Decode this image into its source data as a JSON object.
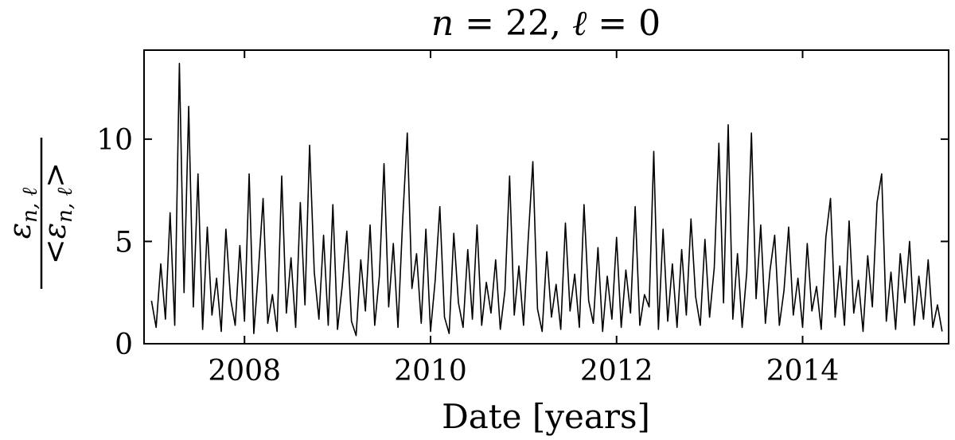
{
  "chart_data": {
    "type": "line",
    "title": {
      "n": "n",
      "eq1": " = 22, ",
      "l": "ℓ",
      "eq2": " = 0"
    },
    "xlabel": "Date [years]",
    "ylabel": {
      "numerator": {
        "symbol": "ε",
        "subscript": "n, ℓ"
      },
      "denominator": {
        "left": "<",
        "symbol": "ε",
        "subscript": "n, ℓ",
        "right": ">"
      }
    },
    "xlim": [
      2006.92,
      2015.57
    ],
    "ylim": [
      0,
      14.35
    ],
    "xticks": [
      2008,
      2010,
      2012,
      2014
    ],
    "yticks": [
      0,
      5,
      10
    ],
    "grid": false,
    "mirror_ticks": true,
    "x": [
      2007,
      2007.05,
      2007.1,
      2007.15,
      2007.2,
      2007.25,
      2007.3,
      2007.35,
      2007.4,
      2007.45,
      2007.5,
      2007.55,
      2007.6,
      2007.65,
      2007.7,
      2007.75,
      2007.8,
      2007.85,
      2007.9,
      2007.95,
      2008,
      2008.05,
      2008.1,
      2008.15,
      2008.2,
      2008.25,
      2008.3,
      2008.35,
      2008.4,
      2008.45,
      2008.5,
      2008.55,
      2008.6,
      2008.65,
      2008.7,
      2008.75,
      2008.8,
      2008.85,
      2008.9,
      2008.95,
      2009,
      2009.05,
      2009.1,
      2009.15,
      2009.2,
      2009.25,
      2009.3,
      2009.35,
      2009.4,
      2009.45,
      2009.5,
      2009.55,
      2009.6,
      2009.65,
      2009.7,
      2009.75,
      2009.8,
      2009.85,
      2009.9,
      2009.95,
      2010,
      2010.05,
      2010.1,
      2010.15,
      2010.2,
      2010.25,
      2010.3,
      2010.35,
      2010.4,
      2010.45,
      2010.5,
      2010.55,
      2010.6,
      2010.65,
      2010.7,
      2010.75,
      2010.8,
      2010.85,
      2010.9,
      2010.95,
      2011,
      2011.05,
      2011.1,
      2011.15,
      2011.2,
      2011.25,
      2011.3,
      2011.35,
      2011.4,
      2011.45,
      2011.5,
      2011.55,
      2011.6,
      2011.65,
      2011.7,
      2011.75,
      2011.8,
      2011.85,
      2011.9,
      2011.95,
      2012,
      2012.05,
      2012.1,
      2012.15,
      2012.2,
      2012.25,
      2012.3,
      2012.35,
      2012.4,
      2012.45,
      2012.5,
      2012.55,
      2012.6,
      2012.65,
      2012.7,
      2012.75,
      2012.8,
      2012.85,
      2012.9,
      2012.95,
      2013,
      2013.05,
      2013.1,
      2013.15,
      2013.2,
      2013.25,
      2013.3,
      2013.35,
      2013.4,
      2013.45,
      2013.5,
      2013.55,
      2013.6,
      2013.65,
      2013.7,
      2013.75,
      2013.8,
      2013.85,
      2013.9,
      2013.95,
      2014,
      2014.05,
      2014.1,
      2014.15,
      2014.2,
      2014.25,
      2014.3,
      2014.35,
      2014.4,
      2014.45,
      2014.5,
      2014.55,
      2014.6,
      2014.65,
      2014.7,
      2014.75,
      2014.8,
      2014.85,
      2014.9,
      2014.95,
      2015,
      2015.05,
      2015.1,
      2015.15,
      2015.2,
      2015.25,
      2015.3,
      2015.35,
      2015.4,
      2015.45,
      2015.5
    ],
    "series": [
      {
        "color": "#000000",
        "values": [
          2.1,
          0.8,
          3.9,
          1.2,
          6.4,
          0.9,
          13.7,
          2.5,
          11.6,
          1.8,
          8.3,
          0.7,
          5.7,
          1.4,
          3.2,
          0.6,
          5.6,
          2.2,
          0.9,
          4.8,
          1.1,
          8.3,
          0.5,
          3.6,
          7.1,
          1.0,
          2.4,
          0.6,
          8.2,
          1.5,
          4.2,
          0.8,
          6.9,
          1.9,
          9.7,
          3.5,
          1.2,
          5.3,
          0.9,
          6.8,
          0.7,
          2.8,
          5.5,
          1.1,
          0.4,
          4.1,
          1.6,
          5.8,
          0.9,
          3.3,
          8.8,
          1.8,
          4.9,
          0.8,
          6.0,
          10.3,
          2.7,
          4.4,
          1.0,
          5.6,
          0.6,
          3.1,
          6.7,
          1.3,
          0.5,
          5.4,
          2.0,
          0.8,
          4.6,
          1.2,
          5.8,
          0.9,
          3.0,
          1.5,
          4.1,
          0.7,
          2.6,
          8.2,
          1.4,
          3.8,
          0.9,
          5.1,
          8.9,
          1.7,
          0.6,
          4.5,
          1.3,
          2.9,
          0.7,
          5.9,
          1.6,
          3.4,
          0.8,
          6.8,
          2.1,
          1.0,
          4.7,
          0.6,
          3.3,
          1.2,
          5.2,
          0.8,
          3.6,
          1.5,
          6.7,
          0.9,
          2.4,
          1.8,
          9.4,
          0.7,
          5.6,
          1.1,
          3.9,
          0.8,
          4.6,
          1.4,
          6.1,
          2.3,
          0.9,
          5.1,
          1.3,
          3.7,
          9.8,
          2.0,
          10.7,
          1.2,
          4.4,
          0.8,
          3.5,
          10.3,
          2.2,
          5.8,
          1.0,
          3.6,
          5.3,
          0.9,
          2.6,
          5.7,
          1.4,
          3.2,
          0.8,
          4.9,
          1.6,
          2.8,
          0.7,
          5.2,
          7.1,
          1.3,
          3.8,
          0.9,
          6.0,
          1.5,
          3.1,
          0.6,
          4.3,
          1.8,
          6.9,
          8.3,
          1.1,
          3.5,
          0.7,
          4.4,
          2.0,
          5.0,
          0.9,
          3.3,
          1.2,
          4.1,
          0.8,
          1.9,
          0.6
        ]
      }
    ]
  }
}
